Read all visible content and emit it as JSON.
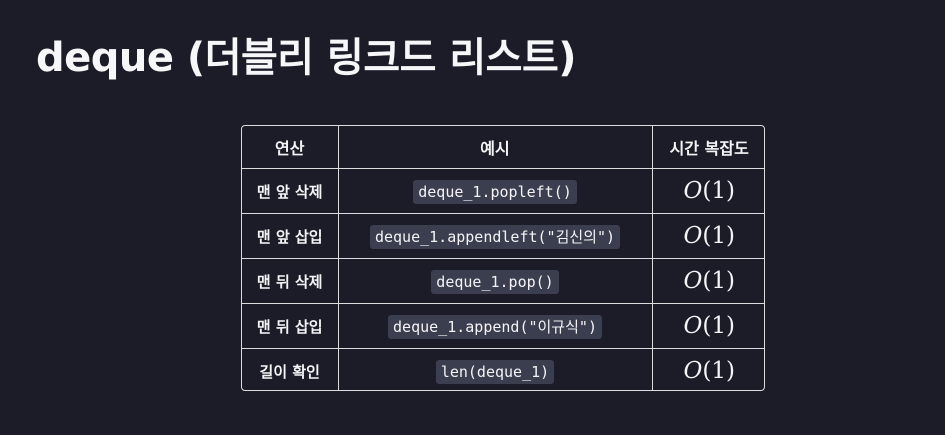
{
  "title": "deque (더블리 링크드 리스트)",
  "table": {
    "headers": [
      "연산",
      "예시",
      "시간 복잡도"
    ],
    "rows": [
      {
        "op": "맨 앞 삭제",
        "example": "deque_1.popleft()",
        "complexity_letter": "O",
        "complexity_arg": "(1)"
      },
      {
        "op": "맨 앞 삽입",
        "example": "deque_1.appendleft(\"김신의\")",
        "complexity_letter": "O",
        "complexity_arg": "(1)"
      },
      {
        "op": "맨 뒤 삭제",
        "example": "deque_1.pop()",
        "complexity_letter": "O",
        "complexity_arg": "(1)"
      },
      {
        "op": "맨 뒤 삽입",
        "example": "deque_1.append(\"이규식\")",
        "complexity_letter": "O",
        "complexity_arg": "(1)"
      },
      {
        "op": "길이 확인",
        "example": "len(deque_1)",
        "complexity_letter": "O",
        "complexity_arg": "(1)"
      }
    ]
  }
}
